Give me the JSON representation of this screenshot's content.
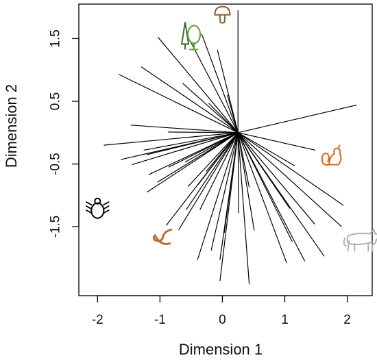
{
  "chart_data": {
    "type": "scatter",
    "subtype": "biplot-rays",
    "title": "",
    "xlabel": "Dimension 1",
    "ylabel": "Dimension 2",
    "xlim": [
      -2.3,
      2.4
    ],
    "ylim": [
      -2.6,
      2.05
    ],
    "xticks": [
      -2,
      -1,
      0,
      1,
      2
    ],
    "xtick_labels": [
      "-2",
      "-1",
      "0",
      "1",
      "2"
    ],
    "yticks": [
      -1.5,
      -0.5,
      0.5,
      1.5
    ],
    "ytick_labels": [
      "-1.5",
      "-0.5",
      "0.5",
      "1.5"
    ],
    "grid": false,
    "legend": "none",
    "origin": [
      0.25,
      0.0
    ],
    "line_color": "#000000",
    "endpoints": [
      [
        0.25,
        1.95
      ],
      [
        -0.33,
        1.57
      ],
      [
        -1.03,
        1.52
      ],
      [
        -0.52,
        1.47
      ],
      [
        -0.08,
        1.32
      ],
      [
        -1.3,
        1.05
      ],
      [
        -1.66,
        0.93
      ],
      [
        -0.64,
        0.79
      ],
      [
        0.08,
        0.6
      ],
      [
        -0.22,
        0.47
      ],
      [
        2.15,
        0.44
      ],
      [
        -1.47,
        0.12
      ],
      [
        -0.87,
        0.01
      ],
      [
        -0.14,
        -0.18
      ],
      [
        -1.9,
        -0.2
      ],
      [
        -1.26,
        -0.28
      ],
      [
        1.49,
        -0.28
      ],
      [
        -1.63,
        -0.43
      ],
      [
        -1.21,
        -0.35
      ],
      [
        -0.6,
        -0.47
      ],
      [
        -1.45,
        -0.51
      ],
      [
        -0.86,
        -0.55
      ],
      [
        1.16,
        -0.53
      ],
      [
        -1.18,
        -0.67
      ],
      [
        -0.26,
        -0.62
      ],
      [
        -1.04,
        -0.79
      ],
      [
        -0.55,
        -0.86
      ],
      [
        -1.21,
        -0.95
      ],
      [
        -0.39,
        -0.83
      ],
      [
        0.43,
        -0.87
      ],
      [
        1.94,
        -1.16
      ],
      [
        1.08,
        -1.21
      ],
      [
        1.48,
        -1.46
      ],
      [
        -0.58,
        -1.23
      ],
      [
        -0.36,
        -1.23
      ],
      [
        0.26,
        -1.28
      ],
      [
        1.91,
        -1.5
      ],
      [
        -0.9,
        -1.48
      ],
      [
        -0.7,
        -1.55
      ],
      [
        0.03,
        -1.6
      ],
      [
        0.51,
        -1.56
      ],
      [
        1.12,
        -1.74
      ],
      [
        -0.18,
        -1.88
      ],
      [
        1.63,
        -1.97
      ],
      [
        -0.4,
        -2.03
      ],
      [
        -0.04,
        -2.03
      ],
      [
        1.32,
        -2.05
      ],
      [
        1.03,
        -2.08
      ],
      [
        -0.04,
        -2.37
      ],
      [
        0.43,
        -2.42
      ]
    ],
    "icons": [
      {
        "name": "mushroom-icon",
        "x": 0.0,
        "y": 1.88,
        "color": "#8B5A2B"
      },
      {
        "name": "trees-icon",
        "x": -0.52,
        "y": 1.5,
        "color": "#5C9C3A"
      },
      {
        "name": "squirrel-icon",
        "x": 1.75,
        "y": -0.38,
        "color": "#D2691E"
      },
      {
        "name": "tick-icon",
        "x": -2.0,
        "y": -1.2,
        "color": "#000000"
      },
      {
        "name": "worm-icon",
        "x": -0.95,
        "y": -1.68,
        "color": "#B8702E"
      },
      {
        "name": "wolf-icon",
        "x": 2.25,
        "y": -1.7,
        "color": "#B0B0B0"
      }
    ]
  }
}
